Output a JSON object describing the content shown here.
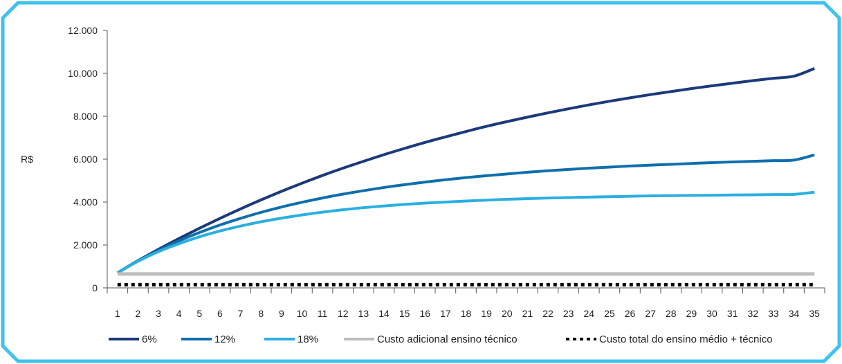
{
  "chart_data": {
    "type": "line",
    "xlabel": "",
    "ylabel": "R$",
    "ylim": [
      0,
      12000
    ],
    "yticks": [
      "0",
      "2.000",
      "4.000",
      "6.000",
      "8.000",
      "10.000",
      "12.000"
    ],
    "ytick_values": [
      0,
      2000,
      4000,
      6000,
      8000,
      10000,
      12000
    ],
    "x": [
      1,
      2,
      3,
      4,
      5,
      6,
      7,
      8,
      9,
      10,
      11,
      12,
      13,
      14,
      15,
      16,
      17,
      18,
      19,
      20,
      21,
      22,
      23,
      24,
      25,
      26,
      27,
      28,
      29,
      30,
      31,
      32,
      33,
      34,
      35
    ],
    "grid": false,
    "legend_position": "bottom",
    "series": [
      {
        "name": "6%",
        "color": "#1b3a7a",
        "style": "solid",
        "values": [
          700,
          1270,
          1800,
          2300,
          2780,
          3240,
          3680,
          4100,
          4500,
          4880,
          5240,
          5580,
          5900,
          6210,
          6500,
          6780,
          7040,
          7290,
          7530,
          7750,
          7960,
          8160,
          8350,
          8530,
          8700,
          8860,
          9010,
          9150,
          9290,
          9420,
          9540,
          9660,
          9770,
          9870,
          10230
        ]
      },
      {
        "name": "12%",
        "color": "#0f6fad",
        "style": "solid",
        "values": [
          700,
          1260,
          1750,
          2190,
          2580,
          2930,
          3240,
          3520,
          3770,
          3990,
          4190,
          4370,
          4530,
          4680,
          4810,
          4930,
          5040,
          5140,
          5230,
          5310,
          5390,
          5460,
          5520,
          5580,
          5630,
          5680,
          5720,
          5760,
          5800,
          5840,
          5870,
          5900,
          5930,
          5960,
          6200
        ]
      },
      {
        "name": "18%",
        "color": "#2aafe0",
        "style": "solid",
        "values": [
          700,
          1240,
          1690,
          2060,
          2380,
          2650,
          2880,
          3080,
          3250,
          3400,
          3530,
          3640,
          3740,
          3820,
          3890,
          3950,
          4000,
          4050,
          4090,
          4130,
          4160,
          4190,
          4210,
          4230,
          4250,
          4270,
          4290,
          4300,
          4310,
          4320,
          4330,
          4340,
          4350,
          4360,
          4460
        ]
      },
      {
        "name": "Custo adicional ensino técnico",
        "color": "#bdbdbd",
        "style": "solid",
        "values": [
          650,
          650,
          650,
          650,
          650,
          650,
          650,
          650,
          650,
          650,
          650,
          650,
          650,
          650,
          650,
          650,
          650,
          650,
          650,
          650,
          650,
          650,
          650,
          650,
          650,
          650,
          650,
          650,
          650,
          650,
          650,
          650,
          650,
          650,
          650
        ]
      },
      {
        "name": "Custo total do ensino médio + técnico",
        "color": "#000000",
        "style": "dotted",
        "values": [
          150,
          150,
          150,
          150,
          150,
          150,
          150,
          150,
          150,
          150,
          150,
          150,
          150,
          150,
          150,
          150,
          150,
          150,
          150,
          150,
          150,
          150,
          150,
          150,
          150,
          150,
          150,
          150,
          150,
          150,
          150,
          150,
          150,
          150,
          150
        ]
      }
    ]
  },
  "frame_color": "#3fc2ee"
}
